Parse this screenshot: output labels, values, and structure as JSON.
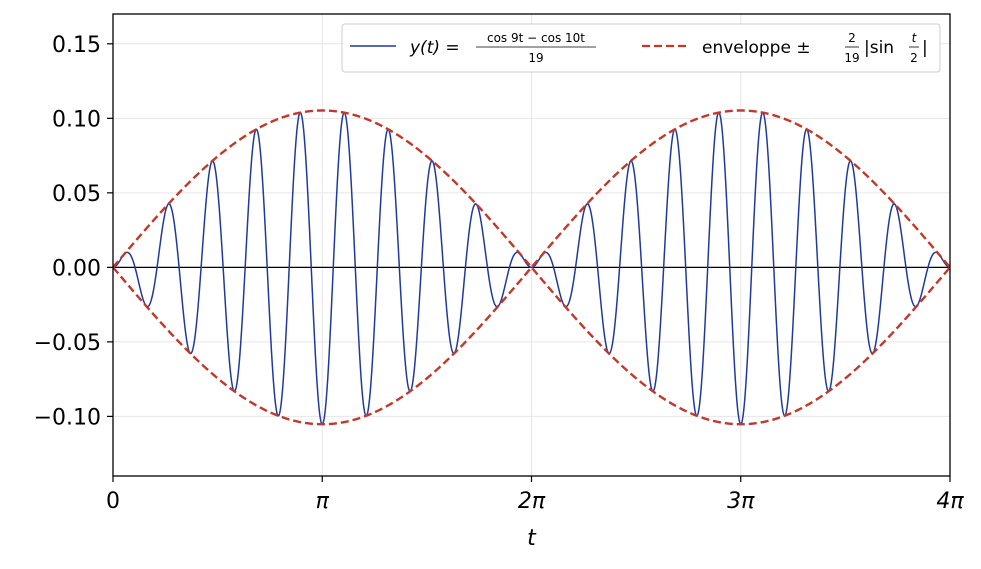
{
  "chart_data": {
    "type": "line",
    "title": "",
    "xlabel": "t",
    "ylabel": "",
    "xlim": [
      0,
      12.566370614359172
    ],
    "ylim": [
      -0.14,
      0.17
    ],
    "x_ticks": [
      {
        "value": 0,
        "label": "0"
      },
      {
        "value": 3.141592653589793,
        "label": "π"
      },
      {
        "value": 6.283185307179586,
        "label": "2π"
      },
      {
        "value": 9.42477796076938,
        "label": "3π"
      },
      {
        "value": 12.566370614359172,
        "label": "4π"
      }
    ],
    "y_ticks": [
      {
        "value": 0.15,
        "label": "0.15"
      },
      {
        "value": 0.1,
        "label": "0.10"
      },
      {
        "value": 0.05,
        "label": "0.05"
      },
      {
        "value": 0.0,
        "label": "0.00"
      },
      {
        "value": -0.05,
        "label": "−0.05"
      },
      {
        "value": -0.1,
        "label": "−0.10"
      }
    ],
    "grid": true,
    "legend_position": "top-right",
    "series": [
      {
        "name": "y(t) = (cos 9t − cos 10t)/19",
        "legend": {
          "lhs": "y(t) =",
          "num": "cos 9t − cos 10t",
          "den": "19"
        },
        "function": "(cos(9t) - cos(10t)) / 19",
        "style": "solid",
        "color": "#1f3a9e"
      },
      {
        "name": "enveloppe ±(2/19)|sin(t/2)|",
        "legend": {
          "lhs": "enveloppe ±",
          "num": "2",
          "den": "19",
          "rhs": "|sin",
          "num2": "t",
          "den2": "2",
          "end": "|"
        },
        "function": "±(2/19)|sin(t/2)|",
        "style": "dashed",
        "color": "#c0392b"
      }
    ],
    "zero_line_color": "#000000"
  }
}
